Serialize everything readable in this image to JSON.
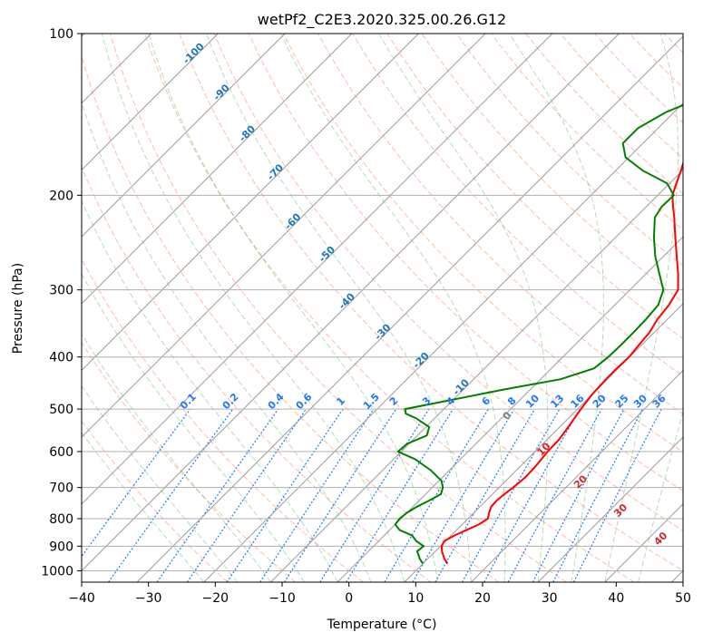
{
  "chart_data": {
    "type": "line",
    "title": "wetPf2_C2E3.2020.325.00.26.G12",
    "xlabel": "Temperature (°C)",
    "ylabel": "Pressure (hPa)",
    "xlim": [
      -40,
      50
    ],
    "ylim": [
      1050,
      100
    ],
    "y_scale": "log",
    "grid": true,
    "x_ticks": [
      -40,
      -30,
      -20,
      -10,
      0,
      10,
      20,
      30,
      40,
      50
    ],
    "y_ticks": [
      100,
      200,
      300,
      400,
      500,
      600,
      700,
      800,
      900,
      1000
    ],
    "skew_isotherms": [
      -100,
      -90,
      -80,
      -70,
      -60,
      -50,
      -40,
      -30,
      -20,
      -10
    ],
    "mixing_ratio_labels": [
      "0.1",
      "0.2",
      "0.4",
      "0.6",
      "1",
      "1.5",
      "2",
      "3",
      "4",
      "6",
      "8",
      "10",
      "13",
      "16",
      "20",
      "25",
      "30",
      "36"
    ],
    "moist_adiabat_labels": [
      "0",
      "10",
      "20",
      "30",
      "40"
    ],
    "colors": {
      "temperature": "#ff0000",
      "dewpoint": "#008000",
      "dry_adiabat": "#ff6a3d",
      "moist_adiabat": "#2ca02c",
      "mixing_ratio": "#1f77ff",
      "isotherm": "#9a9a9a",
      "isotherm_label": "#1f77b4",
      "moist_label": "#d62728"
    },
    "series": [
      {
        "p": [
          970,
          950,
          920,
          900,
          880,
          860,
          840,
          820,
          800,
          780,
          760,
          740,
          720,
          700,
          670,
          640,
          600,
          570,
          540,
          500,
          470,
          440,
          420,
          400,
          380,
          360,
          340,
          320,
          300,
          280,
          260,
          240,
          220,
          210,
          200,
          190,
          180,
          170,
          160,
          150,
          140,
          130,
          125,
          120,
          115,
          110,
          105,
          100
        ],
        "t": [
          13.7,
          12.5,
          11.0,
          10.2,
          9.8,
          10.5,
          11.5,
          12.5,
          13.0,
          12.3,
          11.7,
          11.6,
          11.8,
          12.1,
          12.4,
          12.3,
          11.9,
          11.8,
          11.3,
          10.5,
          10.0,
          9.8,
          9.8,
          9.9,
          9.6,
          9.3,
          8.5,
          8.1,
          7.2,
          4.8,
          2.0,
          -1.0,
          -4.2,
          -6.0,
          -7.8,
          -9.0,
          -10.2,
          -11.6,
          -13.0,
          -14.2,
          -15.4,
          -16.3,
          -16.4,
          -16.4,
          -16.4,
          -17.8,
          -19.8,
          -22.0
        ]
      },
      {
        "p": [
          970,
          950,
          920,
          900,
          880,
          860,
          840,
          820,
          800,
          780,
          760,
          740,
          720,
          700,
          680,
          650,
          620,
          600,
          580,
          560,
          540,
          520,
          510,
          500,
          480,
          460,
          440,
          420,
          400,
          380,
          360,
          340,
          320,
          300,
          280,
          260,
          240,
          220,
          210,
          200,
          190,
          180,
          170,
          160,
          150,
          140,
          130,
          125,
          120,
          115,
          110,
          105,
          100
        ],
        "td": [
          10.0,
          8.8,
          7.3,
          7.5,
          5.6,
          4.2,
          1.5,
          0.0,
          -0.2,
          0.0,
          0.6,
          1.5,
          2.3,
          1.6,
          0.4,
          -2.8,
          -6.8,
          -10.5,
          -10.3,
          -8.6,
          -9.5,
          -12.8,
          -15.0,
          -15.8,
          -10.0,
          -4.0,
          3.0,
          6.4,
          6.8,
          6.9,
          6.9,
          6.8,
          6.5,
          5.0,
          2.0,
          -1.2,
          -4.2,
          -7.1,
          -7.7,
          -7.6,
          -10.4,
          -15.9,
          -20.5,
          -23.0,
          -23.0,
          -21.2,
          -17.5,
          -15.1,
          -14.6,
          -14.6,
          -13.4,
          -11.8,
          -11.5
        ]
      }
    ]
  }
}
